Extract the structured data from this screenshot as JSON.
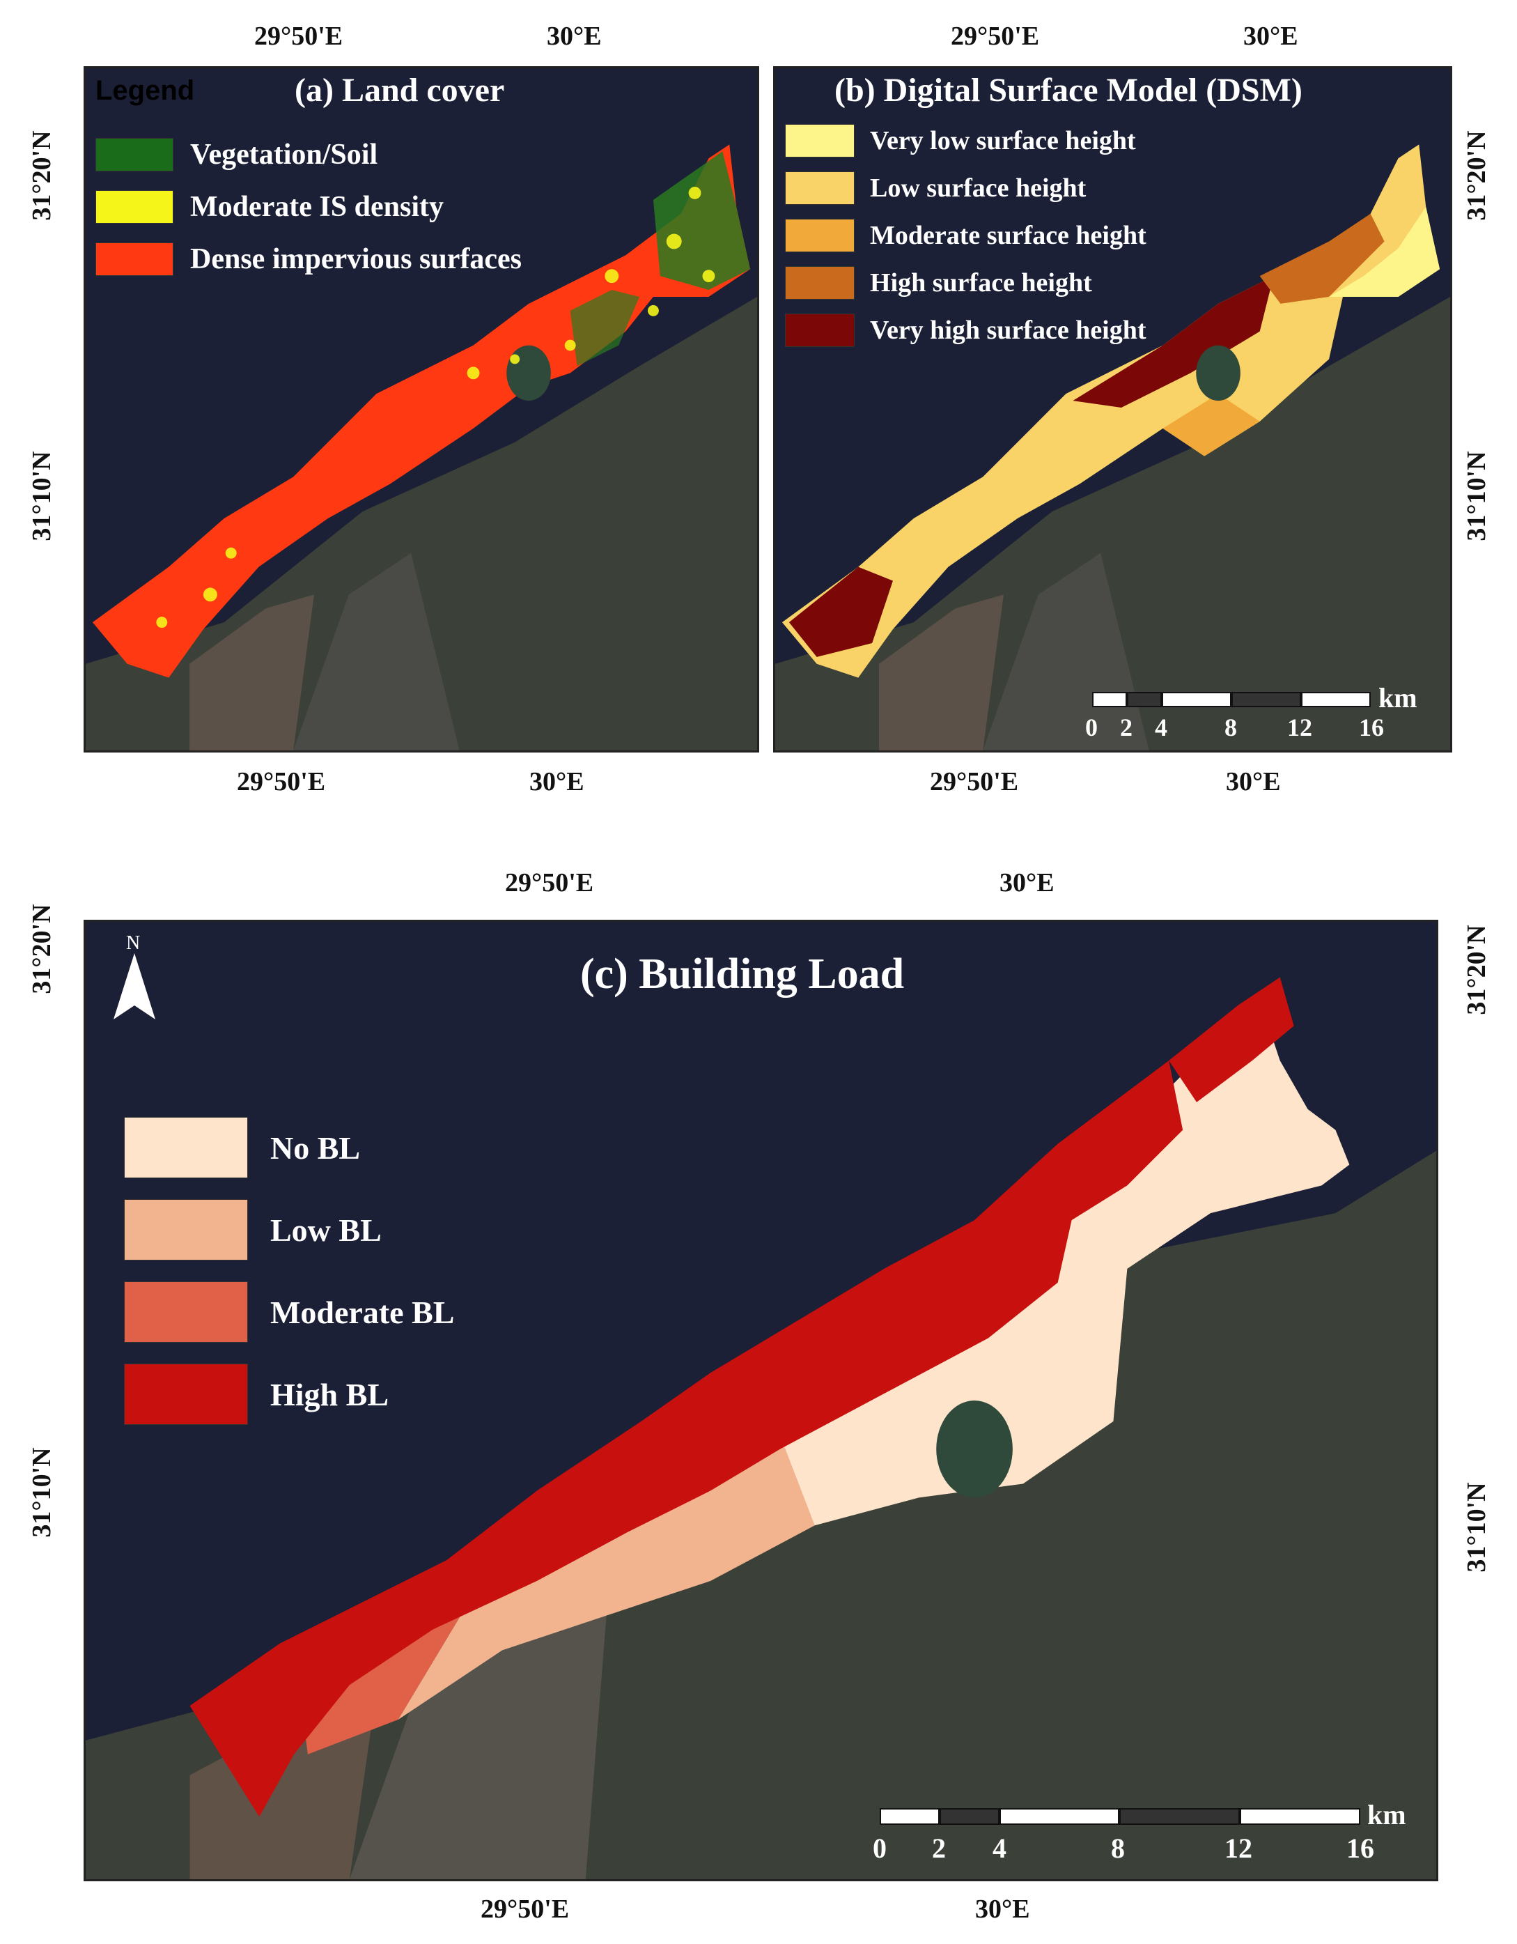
{
  "panels": {
    "a": {
      "title": "(a) Land cover",
      "legend_word": "Legend",
      "legend": [
        {
          "label": "Vegetation/Soil",
          "color": "#1a6b1a"
        },
        {
          "label": "Moderate IS density",
          "color": "#f5f51a"
        },
        {
          "label": "Dense impervious surfaces",
          "color": "#ff3a12"
        }
      ]
    },
    "b": {
      "title": "(b) Digital Surface Model (DSM)",
      "legend": [
        {
          "label": "Very low surface height",
          "color": "#fdf58a"
        },
        {
          "label": "Low surface height",
          "color": "#f9d368"
        },
        {
          "label": "Moderate surface height",
          "color": "#f1a93a"
        },
        {
          "label": "High surface height",
          "color": "#c96a1c"
        },
        {
          "label": "Very high surface height",
          "color": "#7b0707"
        }
      ]
    },
    "c": {
      "title": "(c) Building Load",
      "north": "N",
      "legend": [
        {
          "label": "No BL",
          "color": "#fde4cb"
        },
        {
          "label": "Low BL",
          "color": "#f2b48f"
        },
        {
          "label": "Moderate BL",
          "color": "#e06048"
        },
        {
          "label": "High BL",
          "color": "#c8100e"
        }
      ]
    }
  },
  "graticule": {
    "lon_1": "29°50'E",
    "lon_2": "30°E",
    "lat_1": "31°20'N",
    "lat_2": "31°10'N"
  },
  "scale_bar": {
    "unit": "km",
    "labels": [
      "0",
      "2",
      "4",
      "8",
      "12",
      "16"
    ]
  }
}
